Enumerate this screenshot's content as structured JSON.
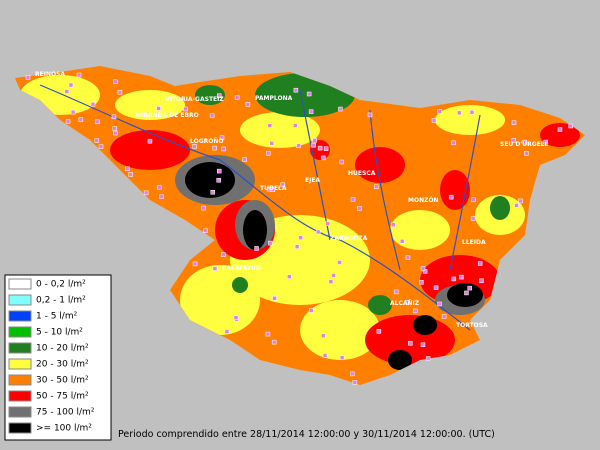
{
  "map": {
    "cities": [
      "REINOSA",
      "VITORIA-GASTEIZ",
      "PAMPLONA",
      "MIRANDA DE EBRO",
      "LOGROÑO",
      "TUDELA",
      "EJEA",
      "HUESCA",
      "MONZÓN",
      "SEU D'URGELL",
      "ZARAGOZA",
      "LLEIDA",
      "CALATAYUD",
      "ALCAÑIZ",
      "TORTOSA"
    ],
    "legend": [
      {
        "label": "0 - 0,2 l/m²",
        "color": "#ffffff"
      },
      {
        "label": "0,2 - 1 l/m²",
        "color": "#80ffff"
      },
      {
        "label": "1 - 5 l/m²",
        "color": "#0040ff"
      },
      {
        "label": "5 - 10 l/m²",
        "color": "#00c000"
      },
      {
        "label": "10 - 20 l/m²",
        "color": "#208020"
      },
      {
        "label": "20 - 30 l/m²",
        "color": "#ffff40"
      },
      {
        "label": "30 - 50 l/m²",
        "color": "#ff8000"
      },
      {
        "label": "50 - 75 l/m²",
        "color": "#ff0000"
      },
      {
        "label": "75 - 100 l/m²",
        "color": "#707070"
      },
      {
        "label": ">= 100 l/m²",
        "color": "#000000"
      }
    ],
    "footer": "Periodo comprendido entre 28/11/2014 12:00:00 y 30/11/2014 12:00:00. (UTC)"
  }
}
